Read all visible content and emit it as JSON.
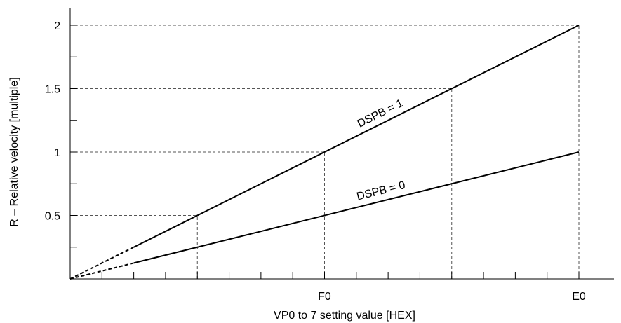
{
  "chart_data": {
    "type": "line",
    "title": "",
    "xlabel": "VP0 to 7 setting value [HEX]",
    "ylabel": "R – Relative velocity [multiple]",
    "xlim": [
      0,
      4
    ],
    "ylim": [
      0,
      2
    ],
    "x_minor_tick_count": 16,
    "x_tick_labels": [
      {
        "x": 2,
        "label": "F0"
      },
      {
        "x": 4,
        "label": "E0"
      }
    ],
    "y_tick_labels": [
      {
        "y": 0.5,
        "label": "0.5"
      },
      {
        "y": 1,
        "label": "1"
      },
      {
        "y": 1.5,
        "label": "1.5"
      },
      {
        "y": 2,
        "label": "2"
      }
    ],
    "y_minor_ticks": [
      0.25,
      0.75,
      1.25,
      1.75
    ],
    "x_guides": [
      1,
      2,
      3,
      4
    ],
    "y_guides": [
      0.5,
      1,
      1.5,
      2
    ],
    "series": [
      {
        "name": "DSPB = 1",
        "slope": 0.5,
        "x": [
          0,
          4
        ],
        "y": [
          0,
          2
        ],
        "dashed_until_x": 1
      },
      {
        "name": "DSPB = 0",
        "slope": 0.25,
        "x": [
          0,
          4
        ],
        "y": [
          0,
          1
        ],
        "dashed_until_x": 1
      }
    ],
    "colors": {
      "line": "#000000",
      "guide": "#555555"
    }
  }
}
